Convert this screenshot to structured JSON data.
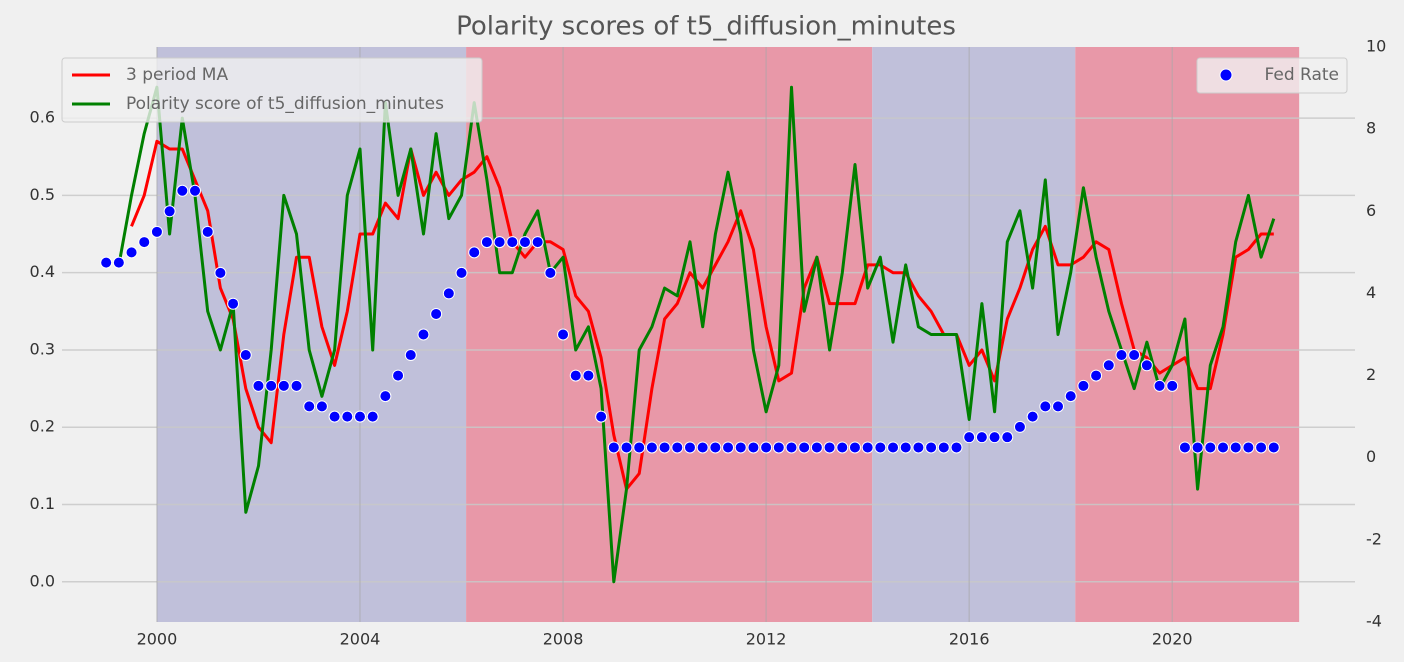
{
  "chart_data": {
    "type": "line",
    "title": "Polarity scores of t5_diffusion_minutes",
    "xlim": [
      1998.13,
      2023.6
    ],
    "xticks": [
      2000,
      2004,
      2008,
      2012,
      2016,
      2020
    ],
    "ylim": [
      -0.052,
      0.692
    ],
    "yticks": [
      {
        "value": 0,
        "label": "0.0"
      },
      0.1,
      0.2,
      0.3,
      0.4,
      0.5,
      0.6
    ],
    "y2lim": [
      -4,
      10
    ],
    "y2ticks": [
      -4,
      -2,
      0,
      2,
      4,
      6,
      8,
      10
    ],
    "grid": true,
    "legend": "upper left",
    "y2_legend": "upper right",
    "spans": [
      {
        "start": 2000.0,
        "end": 2006.09,
        "color": "#c0c0da"
      },
      {
        "start": 2006.09,
        "end": 2014.09,
        "color": "#e898a8"
      },
      {
        "start": 2014.09,
        "end": 2018.09,
        "color": "#c0c0da"
      },
      {
        "start": 2018.09,
        "end": 2022.5,
        "color": "#e898a8"
      }
    ],
    "x": [
      1999.0,
      1999.25,
      1999.5,
      1999.75,
      2000.0,
      2000.25,
      2000.5,
      2000.75,
      2001.0,
      2001.25,
      2001.5,
      2001.75,
      2002.0,
      2002.25,
      2002.5,
      2002.75,
      2003.0,
      2003.25,
      2003.5,
      2003.75,
      2004.0,
      2004.25,
      2004.5,
      2004.75,
      2005.0,
      2005.25,
      2005.5,
      2005.75,
      2006.0,
      2006.25,
      2006.5,
      2006.75,
      2007.0,
      2007.25,
      2007.5,
      2007.75,
      2008.0,
      2008.25,
      2008.5,
      2008.75,
      2009.0,
      2009.25,
      2009.5,
      2009.75,
      2010.0,
      2010.25,
      2010.5,
      2010.75,
      2011.0,
      2011.25,
      2011.5,
      2011.75,
      2012.0,
      2012.25,
      2012.5,
      2012.75,
      2013.0,
      2013.25,
      2013.5,
      2013.75,
      2014.0,
      2014.25,
      2014.5,
      2014.75,
      2015.0,
      2015.25,
      2015.5,
      2015.75,
      2016.0,
      2016.25,
      2016.5,
      2016.75,
      2017.0,
      2017.25,
      2017.5,
      2017.75,
      2018.0,
      2018.25,
      2018.5,
      2018.75,
      2019.0,
      2019.25,
      2019.5,
      2019.75,
      2020.0,
      2020.25,
      2020.5,
      2020.75,
      2021.0,
      2021.25,
      2021.5,
      2021.75,
      2022.0
    ],
    "series": [
      {
        "name": "3 period MA",
        "color": "#ff0000",
        "values": [
          null,
          null,
          0.46,
          0.5,
          0.57,
          0.56,
          0.56,
          0.52,
          0.48,
          0.38,
          0.34,
          0.25,
          0.2,
          0.18,
          0.32,
          0.42,
          0.42,
          0.33,
          0.28,
          0.35,
          0.45,
          0.45,
          0.49,
          0.47,
          0.56,
          0.5,
          0.53,
          0.5,
          0.52,
          0.53,
          0.55,
          0.51,
          0.44,
          0.42,
          0.44,
          0.44,
          0.43,
          0.37,
          0.35,
          0.29,
          0.19,
          0.12,
          0.14,
          0.25,
          0.34,
          0.36,
          0.4,
          0.38,
          0.41,
          0.44,
          0.48,
          0.43,
          0.33,
          0.26,
          0.27,
          0.38,
          0.42,
          0.36,
          0.36,
          0.36,
          0.41,
          0.41,
          0.4,
          0.4,
          0.37,
          0.35,
          0.32,
          0.32,
          0.28,
          0.3,
          0.26,
          0.34,
          0.38,
          0.43,
          0.46,
          0.41,
          0.41,
          0.42,
          0.44,
          0.43,
          0.36,
          0.3,
          0.29,
          0.27,
          0.28,
          0.29,
          0.25,
          0.25,
          0.32,
          0.42,
          0.43,
          0.45,
          0.45
        ]
      },
      {
        "name": "Polarity score of t5_diffusion_minutes",
        "color": "#008000",
        "values": [
          null,
          0.41,
          0.5,
          0.58,
          0.64,
          0.45,
          0.6,
          0.5,
          0.35,
          0.3,
          0.36,
          0.09,
          0.15,
          0.3,
          0.5,
          0.45,
          0.3,
          0.24,
          0.3,
          0.5,
          0.56,
          0.3,
          0.62,
          0.5,
          0.56,
          0.45,
          0.58,
          0.47,
          0.5,
          0.62,
          0.52,
          0.4,
          0.4,
          0.45,
          0.48,
          0.4,
          0.42,
          0.3,
          0.33,
          0.25,
          0.0,
          0.12,
          0.3,
          0.33,
          0.38,
          0.37,
          0.44,
          0.33,
          0.45,
          0.53,
          0.45,
          0.3,
          0.22,
          0.28,
          0.64,
          0.35,
          0.42,
          0.3,
          0.4,
          0.54,
          0.38,
          0.42,
          0.31,
          0.41,
          0.33,
          0.32,
          0.32,
          0.32,
          0.21,
          0.36,
          0.22,
          0.44,
          0.48,
          0.38,
          0.52,
          0.32,
          0.4,
          0.51,
          0.42,
          0.35,
          0.3,
          0.25,
          0.31,
          0.25,
          0.28,
          0.34,
          0.12,
          0.28,
          0.33,
          0.44,
          0.5,
          0.42,
          0.47
        ]
      },
      {
        "name": "Fed Rate",
        "color": "#0000ff",
        "type": "scatter",
        "axis": "y2",
        "values": [
          4.75,
          4.75,
          5.0,
          5.25,
          5.5,
          6.0,
          6.5,
          6.5,
          5.5,
          4.5,
          3.75,
          2.5,
          1.75,
          1.75,
          1.75,
          1.75,
          1.25,
          1.25,
          1.0,
          1.0,
          1.0,
          1.0,
          1.5,
          2.0,
          2.5,
          3.0,
          3.5,
          4.0,
          4.5,
          5.0,
          5.25,
          5.25,
          5.25,
          5.25,
          5.25,
          4.5,
          3.0,
          2.0,
          2.0,
          1.0,
          0.25,
          0.25,
          0.25,
          0.25,
          0.25,
          0.25,
          0.25,
          0.25,
          0.25,
          0.25,
          0.25,
          0.25,
          0.25,
          0.25,
          0.25,
          0.25,
          0.25,
          0.25,
          0.25,
          0.25,
          0.25,
          0.25,
          0.25,
          0.25,
          0.25,
          0.25,
          0.25,
          0.25,
          0.5,
          0.5,
          0.5,
          0.5,
          0.75,
          1.0,
          1.25,
          1.25,
          1.5,
          1.75,
          2.0,
          2.25,
          2.5,
          2.5,
          2.25,
          1.75,
          1.75,
          0.25,
          0.25,
          0.25,
          0.25,
          0.25,
          0.25,
          0.25,
          0.25
        ]
      }
    ]
  }
}
